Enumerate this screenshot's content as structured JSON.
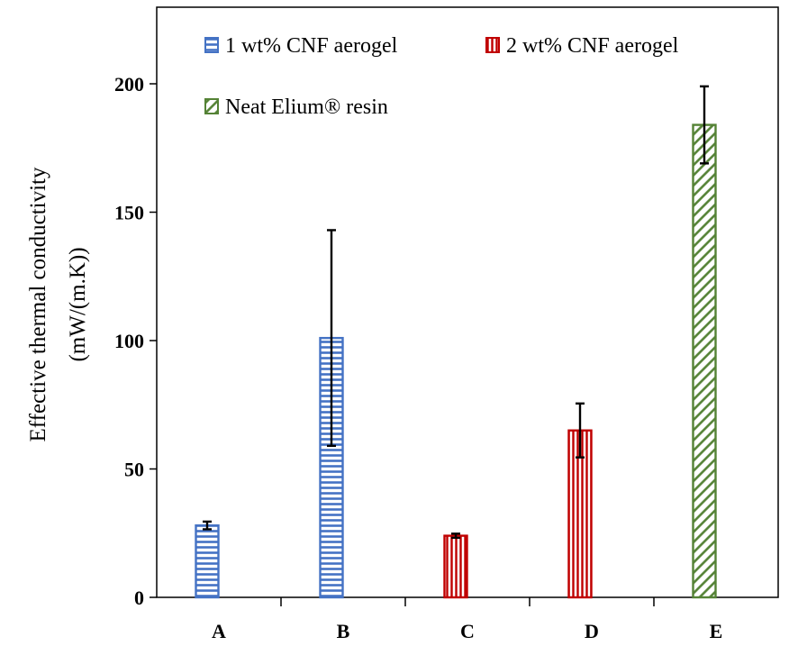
{
  "chart_data": {
    "type": "bar",
    "title": "",
    "xlabel": "",
    "ylabel_lines": [
      "Effective thermal conductivity",
      "(mW/(m.K))"
    ],
    "ylim": [
      0,
      200
    ],
    "yticks": [
      0,
      50,
      100,
      150,
      200
    ],
    "categories": [
      "A",
      "B",
      "C",
      "D",
      "E"
    ],
    "grid": false,
    "legend_position": "top",
    "series": [
      {
        "name": "1 wt% CNF aerogel",
        "color": "#4472c4",
        "pattern": "horizontal-stripes"
      },
      {
        "name": "2 wt% CNF aerogel",
        "color": "#c00000",
        "pattern": "vertical-stripes"
      },
      {
        "name": "Neat Elium® resin",
        "color": "#548235",
        "pattern": "diagonal-stripes"
      }
    ],
    "bars": [
      {
        "category": "A",
        "series": 0,
        "value": 28,
        "error": 1.5
      },
      {
        "category": "B",
        "series": 0,
        "value": 101,
        "error": 42
      },
      {
        "category": "C",
        "series": 1,
        "value": 24,
        "error": 0.8
      },
      {
        "category": "D",
        "series": 1,
        "value": 65,
        "error": 10.5
      },
      {
        "category": "E",
        "series": 2,
        "value": 184,
        "error": 15
      }
    ]
  }
}
